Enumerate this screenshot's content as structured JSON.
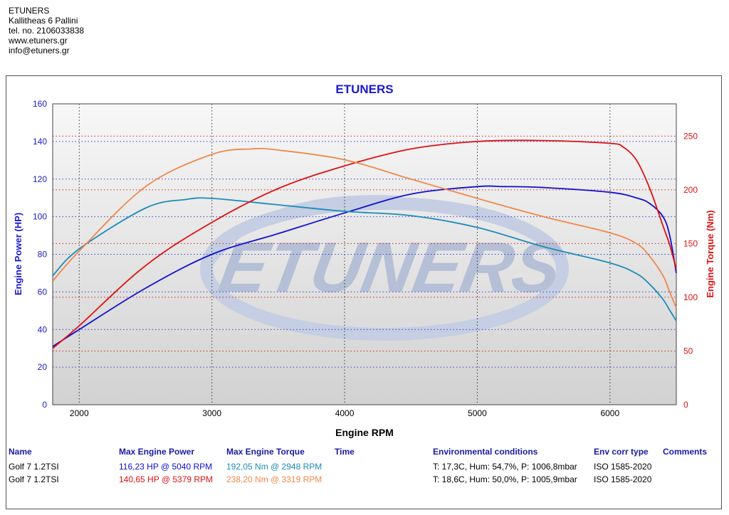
{
  "header": {
    "company": "ETUNERS",
    "address": "Kallitheas 6 Pallini",
    "phone": "tel. no. 2106033838",
    "website": "www.etuners.gr",
    "email": "info@etuners.gr"
  },
  "chart_data": {
    "type": "line",
    "title": "ETUNERS",
    "watermark": "ETUNERS",
    "xlabel": "Engine RPM",
    "ylabel_left": "Engine Power (HP)",
    "ylabel_right": "Engine Torque (Nm)",
    "xlim": [
      1800,
      6500
    ],
    "ylim_left": [
      0,
      160
    ],
    "ylim_right": [
      0,
      280
    ],
    "x_ticks": [
      2000,
      3000,
      4000,
      5000,
      6000
    ],
    "y_ticks_left": [
      0,
      20,
      40,
      60,
      80,
      100,
      120,
      140,
      160
    ],
    "y_ticks_right": [
      0,
      50,
      100,
      150,
      200,
      250
    ],
    "grid": true,
    "series": [
      {
        "axis": "left",
        "color": "#1010d0",
        "x": [
          1800,
          2000,
          2500,
          3000,
          3500,
          4000,
          4500,
          5000,
          5200,
          5500,
          6000,
          6200,
          6300,
          6400,
          6450,
          6500
        ],
        "y": [
          31,
          40,
          62,
          80,
          91,
          102,
          112,
          116,
          116,
          115.5,
          113,
          110,
          107,
          100,
          90,
          70
        ]
      },
      {
        "axis": "right",
        "color": "#1b8cb8",
        "x": [
          1800,
          2000,
          2500,
          2800,
          3000,
          3500,
          4000,
          4500,
          5000,
          5500,
          6000,
          6200,
          6300,
          6400,
          6450,
          6500
        ],
        "y": [
          120,
          145,
          183,
          191,
          192,
          186,
          180,
          176,
          165,
          147,
          132,
          122,
          112,
          98,
          88,
          78
        ]
      },
      {
        "axis": "left",
        "color": "#e01010",
        "x": [
          1800,
          2000,
          2500,
          3000,
          3500,
          4000,
          4500,
          5000,
          5500,
          6000,
          6100,
          6200,
          6300,
          6400,
          6450,
          6500
        ],
        "y": [
          30,
          42,
          74,
          97,
          115,
          127,
          136,
          140,
          140.5,
          139,
          137,
          130,
          115,
          95,
          85,
          72
        ]
      },
      {
        "axis": "right",
        "color": "#f0884a",
        "x": [
          1800,
          2000,
          2500,
          3000,
          3300,
          3500,
          4000,
          4500,
          5000,
          5500,
          6000,
          6200,
          6300,
          6400,
          6450,
          6500
        ],
        "y": [
          115,
          143,
          203,
          233,
          238,
          237,
          228,
          210,
          192,
          175,
          160,
          150,
          138,
          120,
          105,
          90
        ]
      }
    ]
  },
  "table": {
    "headers": [
      "Name",
      "Max Engine Power",
      "Max Engine Torque",
      "Time",
      "Environmental conditions",
      "Env corr type",
      "Comments"
    ],
    "rows": [
      {
        "name": "Golf 7 1.2TSI",
        "power": "116,23 HP @ 5040 RPM",
        "torque": "192,05 Nm @ 2948 RPM",
        "time": "",
        "env": "T: 17,3C, Hum: 54,7%, P: 1006,8mbar",
        "corr": "ISO 1585-2020",
        "comments": "",
        "power_color": "#1010d0",
        "torque_color": "#1b8cb8"
      },
      {
        "name": "Golf 7 1.2TSI",
        "power": "140,65 HP @ 5379 RPM",
        "torque": "238,20 Nm @ 3319 RPM",
        "time": "",
        "env": "T: 18,6C, Hum: 50,0%, P: 1005,9mbar",
        "corr": "ISO 1585-2020",
        "comments": "",
        "power_color": "#e01010",
        "torque_color": "#f0884a"
      }
    ]
  }
}
